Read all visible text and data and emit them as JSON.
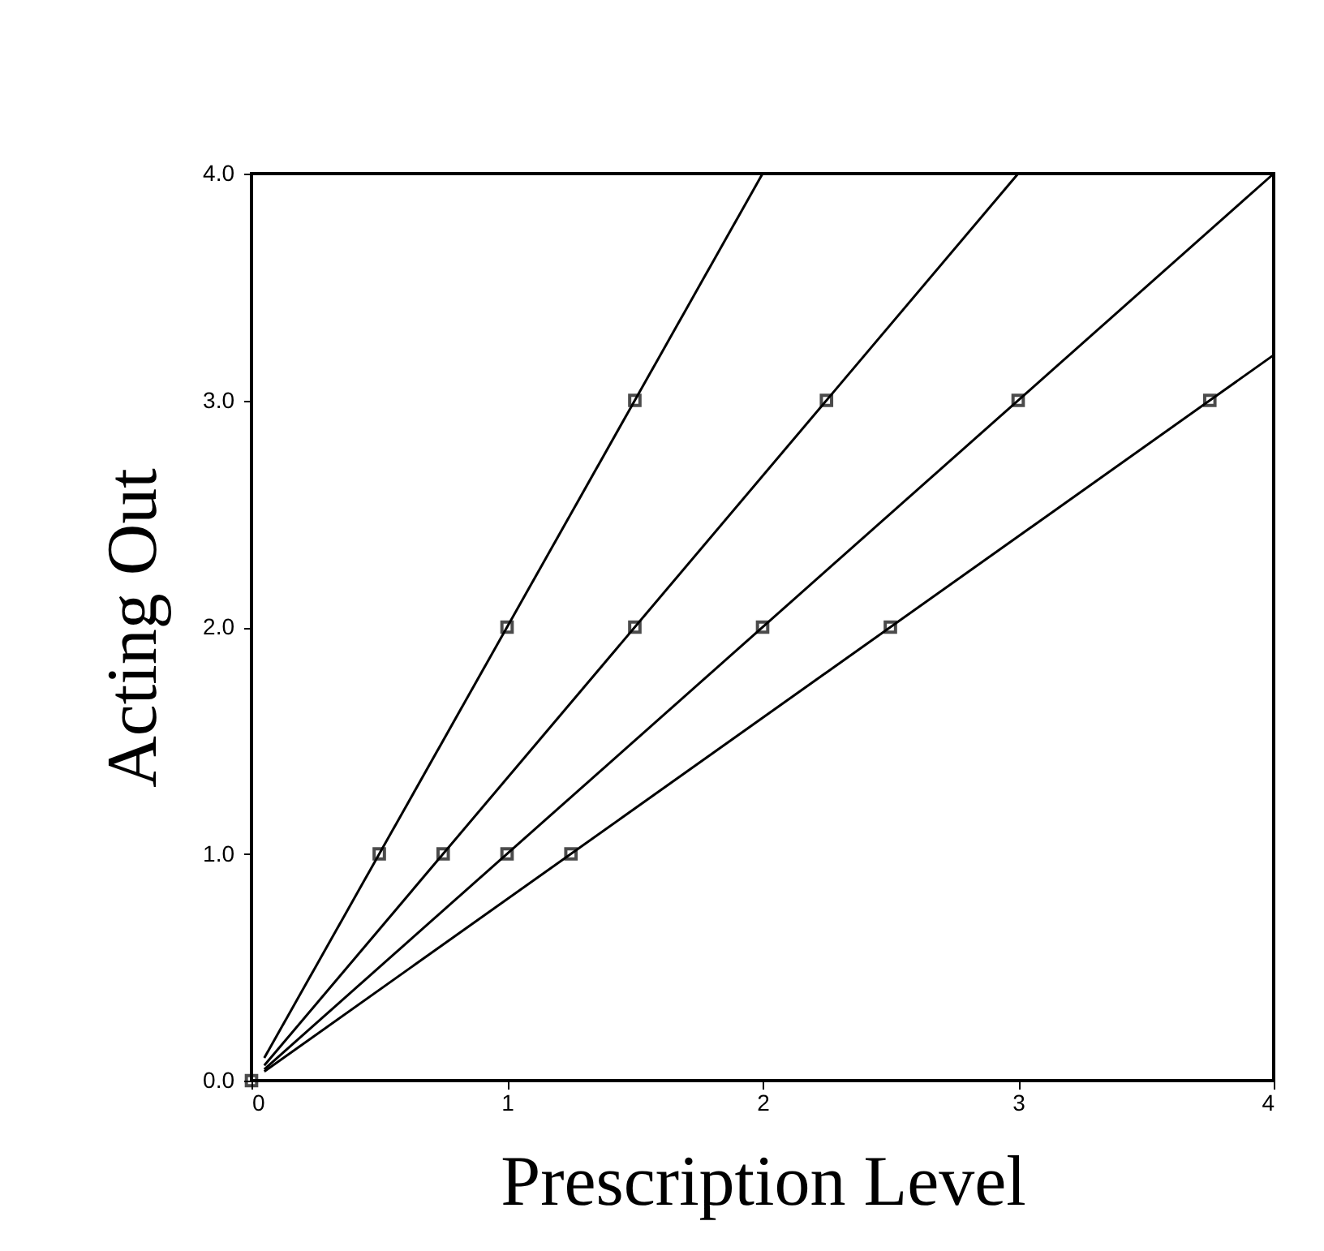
{
  "chart_data": {
    "type": "scatter",
    "xlabel": "Prescription Level",
    "ylabel": "Acting Out",
    "xlim": [
      0,
      4
    ],
    "ylim": [
      0,
      4
    ],
    "xticks": [
      0,
      1,
      2,
      3,
      4
    ],
    "yticks": [
      {
        "value": 0,
        "label": "0.0"
      },
      {
        "value": 1,
        "label": "1.0"
      },
      {
        "value": 2,
        "label": "2.0"
      },
      {
        "value": 3,
        "label": "3.0"
      },
      {
        "value": 4,
        "label": "4.0"
      }
    ],
    "grid": false,
    "series": [
      {
        "color": "#000000",
        "marker": "square",
        "x": [
          0,
          0.5,
          1,
          1.5,
          0.75,
          1.5,
          2.25,
          1,
          2,
          3,
          1.25,
          2.5,
          3.75
        ],
        "values": [
          0,
          1,
          2,
          3,
          1,
          2,
          3,
          1,
          2,
          3,
          1,
          2,
          3
        ]
      },
      {
        "type": "line",
        "color": "#000000",
        "marker": "none",
        "x": [
          0.05,
          2
        ],
        "values": [
          0.1,
          4
        ]
      },
      {
        "type": "line",
        "color": "#000000",
        "marker": "none",
        "x": [
          0.05,
          3
        ],
        "values": [
          0.067,
          4
        ]
      },
      {
        "type": "line",
        "color": "#000000",
        "marker": "none",
        "x": [
          0.05,
          4
        ],
        "values": [
          0.05,
          4
        ]
      },
      {
        "type": "line",
        "color": "#000000",
        "marker": "none",
        "x": [
          0.05,
          4
        ],
        "values": [
          0.04,
          3.2
        ]
      }
    ]
  }
}
